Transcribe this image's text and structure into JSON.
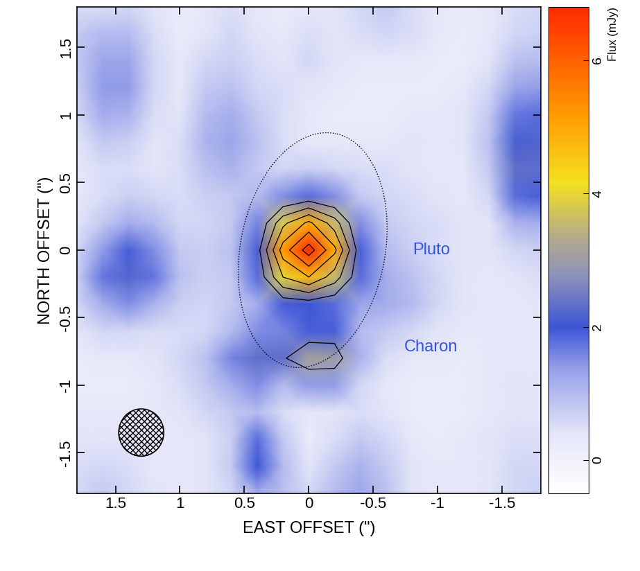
{
  "chart_data": {
    "type": "heatmap",
    "x_label": "EAST OFFSET (\")",
    "y_label": "NORTH OFFSET (\")",
    "xlim": [
      1.8,
      -1.8
    ],
    "ylim": [
      -1.8,
      1.8
    ],
    "xticks": [
      1.5,
      1,
      0.5,
      0,
      -0.5,
      -1,
      -1.5
    ],
    "yticks": [
      -1.5,
      -1,
      -0.5,
      0,
      0.5,
      1,
      1.5
    ],
    "x": [
      1.8,
      1.6,
      1.4,
      1.2,
      1.0,
      0.8,
      0.6,
      0.4,
      0.2,
      0.0,
      -0.2,
      -0.4,
      -0.6,
      -0.8,
      -1.0,
      -1.2,
      -1.4,
      -1.6,
      -1.8
    ],
    "y": [
      1.8,
      1.6,
      1.4,
      1.2,
      1.0,
      0.8,
      0.6,
      0.4,
      0.2,
      0.0,
      -0.2,
      -0.4,
      -0.6,
      -0.8,
      -1.0,
      -1.2,
      -1.4,
      -1.6,
      -1.8
    ],
    "cells": [
      [
        0.5,
        0.5,
        0.6,
        0.4,
        0.2,
        0.3,
        0.5,
        0.3,
        0.2,
        0.3,
        0.4,
        0.6,
        0.8,
        0.5,
        0.3,
        0.2,
        0.3,
        0.5,
        0.6
      ],
      [
        0.8,
        1.0,
        1.0,
        0.5,
        0.2,
        0.4,
        0.6,
        0.4,
        0.3,
        0.5,
        0.4,
        0.5,
        0.6,
        0.5,
        0.3,
        0.2,
        0.3,
        0.6,
        0.7
      ],
      [
        0.8,
        1.3,
        1.3,
        0.6,
        0.3,
        0.6,
        0.7,
        0.5,
        0.4,
        0.6,
        0.4,
        0.3,
        0.3,
        0.3,
        0.2,
        0.2,
        0.4,
        0.9,
        1.0
      ],
      [
        0.7,
        1.4,
        1.4,
        0.6,
        0.3,
        0.8,
        0.9,
        0.6,
        0.5,
        0.4,
        0.3,
        0.2,
        0.2,
        0.2,
        0.2,
        0.3,
        0.6,
        1.3,
        1.4
      ],
      [
        0.6,
        1.2,
        1.1,
        0.5,
        0.4,
        1.0,
        1.2,
        0.8,
        0.5,
        0.3,
        0.2,
        0.2,
        0.2,
        0.3,
        0.3,
        0.4,
        0.8,
        1.7,
        1.8
      ],
      [
        0.4,
        0.8,
        0.7,
        0.4,
        0.5,
        1.1,
        1.3,
        0.9,
        0.5,
        0.3,
        0.3,
        0.3,
        0.3,
        0.4,
        0.3,
        0.4,
        0.9,
        2.1,
        2.2
      ],
      [
        0.3,
        0.5,
        0.5,
        0.4,
        0.5,
        0.9,
        1.1,
        0.8,
        0.6,
        0.7,
        0.6,
        0.5,
        0.5,
        0.4,
        0.3,
        0.3,
        0.8,
        2.3,
        2.3
      ],
      [
        0.3,
        0.5,
        0.7,
        0.6,
        0.5,
        0.7,
        0.8,
        1.0,
        1.5,
        1.8,
        1.5,
        0.8,
        0.6,
        0.5,
        0.4,
        0.3,
        0.6,
        1.8,
        1.9
      ],
      [
        0.4,
        0.8,
        1.2,
        1.0,
        0.6,
        0.6,
        0.8,
        1.6,
        3.8,
        5.0,
        3.6,
        1.5,
        0.8,
        0.6,
        0.5,
        0.4,
        0.4,
        1.1,
        1.2
      ],
      [
        0.6,
        1.4,
        1.9,
        1.5,
        0.8,
        0.7,
        0.9,
        2.1,
        5.2,
        6.8,
        5.0,
        1.9,
        1.0,
        0.7,
        0.5,
        0.4,
        0.4,
        0.6,
        0.7
      ],
      [
        0.7,
        1.7,
        2.2,
        1.7,
        0.9,
        0.7,
        0.8,
        1.8,
        4.0,
        4.8,
        3.6,
        1.8,
        1.2,
        0.9,
        0.6,
        0.4,
        0.3,
        0.4,
        0.5
      ],
      [
        0.6,
        1.2,
        1.5,
        1.1,
        0.7,
        0.6,
        0.8,
        1.2,
        1.9,
        2.0,
        1.8,
        1.3,
        1.2,
        1.0,
        0.6,
        0.4,
        0.3,
        0.3,
        0.4
      ],
      [
        0.4,
        0.6,
        0.6,
        0.5,
        0.5,
        0.6,
        1.0,
        1.5,
        1.6,
        1.9,
        1.9,
        1.0,
        0.8,
        0.6,
        0.4,
        0.3,
        0.3,
        0.3,
        0.3
      ],
      [
        0.2,
        0.3,
        0.3,
        0.4,
        0.6,
        0.9,
        1.6,
        2.3,
        2.3,
        3.1,
        3.0,
        1.1,
        0.5,
        0.3,
        0.3,
        0.2,
        0.3,
        0.3,
        0.3
      ],
      [
        0.2,
        0.2,
        0.2,
        0.3,
        0.5,
        0.8,
        1.2,
        1.5,
        1.0,
        1.4,
        1.4,
        0.6,
        0.3,
        0.2,
        0.2,
        0.2,
        0.3,
        0.4,
        0.4
      ],
      [
        0.3,
        0.3,
        0.3,
        0.3,
        0.4,
        0.6,
        0.8,
        1.0,
        0.5,
        0.3,
        0.4,
        0.5,
        0.4,
        0.2,
        0.2,
        0.2,
        0.3,
        0.4,
        0.4
      ],
      [
        0.4,
        0.4,
        0.4,
        0.3,
        0.3,
        0.4,
        0.7,
        1.8,
        0.8,
        0.2,
        0.5,
        0.8,
        0.6,
        0.3,
        0.2,
        0.3,
        0.4,
        0.5,
        0.5
      ],
      [
        0.5,
        0.6,
        0.5,
        0.3,
        0.3,
        0.4,
        0.8,
        2.0,
        1.0,
        0.4,
        0.8,
        1.1,
        0.8,
        0.4,
        0.3,
        0.3,
        0.4,
        0.6,
        0.6
      ],
      [
        0.6,
        0.8,
        0.6,
        0.4,
        0.3,
        0.4,
        0.6,
        1.2,
        0.9,
        0.6,
        1.0,
        1.3,
        0.9,
        0.4,
        0.3,
        0.3,
        0.4,
        0.6,
        0.7
      ]
    ],
    "contour_levels": [
      2.4,
      3.2,
      4.0,
      4.8,
      5.6,
      6.4
    ],
    "colorbar": {
      "label": "Flux (mJy)",
      "range": [
        -0.5,
        6.8
      ],
      "ticks": [
        0,
        2,
        4,
        6
      ]
    },
    "annotations": [
      {
        "text": "Pluto",
        "x": -0.95,
        "y": 0.0
      },
      {
        "text": "Charon",
        "x": -0.95,
        "y": -0.72
      }
    ],
    "orbit": {
      "center": [
        -0.03,
        0.0
      ],
      "semi_major": 0.88,
      "semi_minor": 0.56,
      "position_angle": -12
    },
    "beam": {
      "center": [
        1.3,
        -1.35
      ],
      "major": 0.35,
      "minor": 0.35
    }
  }
}
